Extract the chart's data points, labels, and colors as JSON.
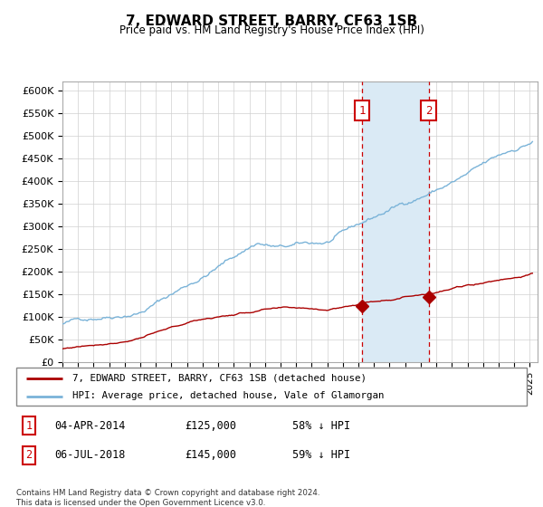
{
  "title": "7, EDWARD STREET, BARRY, CF63 1SB",
  "subtitle": "Price paid vs. HM Land Registry's House Price Index (HPI)",
  "ylabel_ticks": [
    "£0",
    "£50K",
    "£100K",
    "£150K",
    "£200K",
    "£250K",
    "£300K",
    "£350K",
    "£400K",
    "£450K",
    "£500K",
    "£550K",
    "£600K"
  ],
  "ytick_values": [
    0,
    50000,
    100000,
    150000,
    200000,
    250000,
    300000,
    350000,
    400000,
    450000,
    500000,
    550000,
    600000
  ],
  "ylim": [
    0,
    620000
  ],
  "xlim_start": 1995.0,
  "xlim_end": 2025.5,
  "hpi_color": "#7ab3d8",
  "price_color": "#aa0000",
  "marker_color": "#aa0000",
  "annotation_box_color": "#cc0000",
  "shaded_color": "#daeaf5",
  "event1_x": 2014.25,
  "event2_x": 2018.5,
  "legend_line1": "7, EDWARD STREET, BARRY, CF63 1SB (detached house)",
  "legend_line2": "HPI: Average price, detached house, Vale of Glamorgan",
  "table_row1": [
    "1",
    "04-APR-2014",
    "£125,000",
    "58% ↓ HPI"
  ],
  "table_row2": [
    "2",
    "06-JUL-2018",
    "£145,000",
    "59% ↓ HPI"
  ],
  "footer": "Contains HM Land Registry data © Crown copyright and database right 2024.\nThis data is licensed under the Open Government Licence v3.0."
}
